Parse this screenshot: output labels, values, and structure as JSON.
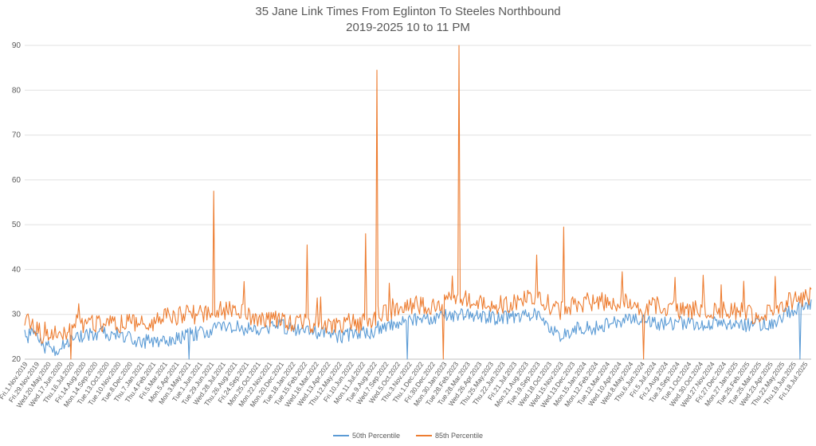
{
  "chart_data": {
    "type": "line",
    "title": "35 Jane Link Times From Eglinton To Steeles Northbound",
    "subtitle": "2019-2025 10 to 11 PM",
    "xlabel": "",
    "ylabel": "",
    "ylim": [
      20,
      90
    ],
    "yticks": [
      20,
      30,
      40,
      50,
      60,
      70,
      80,
      90
    ],
    "grid": "horizontal",
    "legend": "bottom",
    "x_tick_labels": [
      "Fri.1.Nov.2019",
      "Fri.29.Nov.2019",
      "Wed.20.May.2020",
      "Wed.17.Jun.2020",
      "Thu.16.Jul.2020",
      "Fri.14.Aug.2020",
      "Mon.14.Sep.2020",
      "Tue.13.Oct.2020",
      "Tue.10.Nov.2020",
      "Tue.8.Dec.2020",
      "Thu.7.Jan.2021",
      "Thu.4.Feb.2021",
      "Fri.5.Mar.2021",
      "Mon.5.Apr.2021",
      "Mon.3.May.2021",
      "Tue.1.Jun.2021",
      "Tue.29.Jun.2021",
      "Wed.28.Jul.2021",
      "Thu.26.Aug.2021",
      "Fri.24.Sep.2021",
      "Mon.25.Oct.2021",
      "Mon.22.Nov.2021",
      "Mon.20.Dec.2021",
      "Tue.18.Jan.2022",
      "Tue.15.Feb.2022",
      "Wed.16.Mar.2022",
      "Wed.13.Apr.2022",
      "Thu.12.May.2022",
      "Fri.10.Jun.2022",
      "Mon.11.Jul.2022",
      "Tue.9.Aug.2022",
      "Wed.7.Sep.2022",
      "Wed.5.Oct.2022",
      "Thu.3.Nov.2022",
      "Thu.1.Dec.2022",
      "Fri.30.Dec.2022",
      "Mon.30.Jan.2023",
      "Tue.28.Feb.2023",
      "Tue.28.Mar.2023",
      "Wed.26.Apr.2023",
      "Thu.25.May.2023",
      "Thu.22.Jun.2023",
      "Fri.21.Jul.2023",
      "Mon.21.Aug.2023",
      "Tue.19.Sep.2023",
      "Wed.18.Oct.2023",
      "Wed.15.Nov.2023",
      "Wed.13.Dec.2023",
      "Mon.15.Jan.2024",
      "Mon.12.Feb.2024",
      "Tue.12.Mar.2024",
      "Wed.10.Apr.2024",
      "Wed.8.May.2024",
      "Thu.6.Jun.2024",
      "Fri.5.Jul.2024",
      "Fri.2.Aug.2024",
      "Tue.3.Sep.2024",
      "Tue.1.Oct.2024",
      "Wed.30.Oct.2024",
      "Wed.27.Nov.2024",
      "Fri.27.Dec.2024",
      "Mon.27.Jan.2025",
      "Tue.25.Feb.2025",
      "Tue.25.Mar.2025",
      "Wed.23.Apr.2025",
      "Thu.22.May.2025",
      "Thu.19.Jun.2025",
      "Fri.18.Jul.2025"
    ],
    "series": [
      {
        "name": "50th Percentile",
        "color": "#5B9BD5",
        "x_anchor": [
          0,
          1,
          2,
          5,
          8,
          10,
          12,
          15,
          20,
          25,
          30,
          35,
          40,
          45,
          50,
          52,
          56,
          60,
          65,
          70,
          75,
          80,
          85,
          88,
          90,
          95,
          100,
          105,
          110,
          115,
          120,
          125,
          130,
          133,
          136,
          140,
          145,
          150,
          155,
          160,
          165,
          170,
          175,
          180,
          185,
          190,
          195,
          200
        ],
        "values_anchor": [
          25,
          25,
          26,
          23,
          22,
          23,
          24,
          25,
          26,
          25,
          24,
          24,
          25,
          26,
          27,
          27.5,
          26.5,
          27,
          27.5,
          26.5,
          26,
          25,
          26,
          26,
          27,
          28,
          29,
          29.5,
          30,
          30,
          29,
          29.5,
          30,
          27,
          25,
          27,
          27,
          28,
          29,
          28,
          28,
          28,
          28,
          28,
          27.5,
          28,
          31,
          32
        ]
      },
      {
        "name": "85th Percentile",
        "color": "#ED7D31",
        "x_anchor": [
          0,
          1,
          2,
          5,
          8,
          10,
          12,
          15,
          20,
          25,
          30,
          35,
          40,
          45,
          50,
          52,
          56,
          60,
          65,
          70,
          75,
          80,
          85,
          88,
          90,
          95,
          100,
          105,
          110,
          115,
          120,
          125,
          130,
          133,
          136,
          140,
          145,
          150,
          155,
          160,
          165,
          170,
          175,
          180,
          185,
          190,
          195,
          200
        ],
        "values_anchor": [
          28,
          28,
          28,
          25,
          26,
          26,
          28,
          28,
          28,
          28,
          28,
          29,
          30,
          30,
          31,
          31,
          30,
          29,
          29,
          28,
          28,
          28,
          28,
          29,
          30,
          31,
          32,
          32,
          34,
          33,
          32,
          33,
          34,
          31,
          31,
          32,
          33,
          33,
          32,
          32,
          31,
          31,
          31,
          31,
          30,
          31,
          33,
          34
        ],
        "spikes": [
          {
            "at": "Tue.29.Jun.2021",
            "value": 57.5
          },
          {
            "at": "Tue.15.Feb.2022",
            "value": 45.5
          },
          {
            "at": "Mon.11.Jul.2022",
            "value": 48
          },
          {
            "at": "Tue.9.Aug.2022",
            "value": 84.5
          },
          {
            "at": "Tue.28.Feb.2023",
            "value": 90
          },
          {
            "at": "Wed.15.Nov.2023",
            "value": 49.5
          },
          {
            "at": "Wed.10.Apr.2024",
            "value": 39.5
          }
        ]
      }
    ]
  }
}
